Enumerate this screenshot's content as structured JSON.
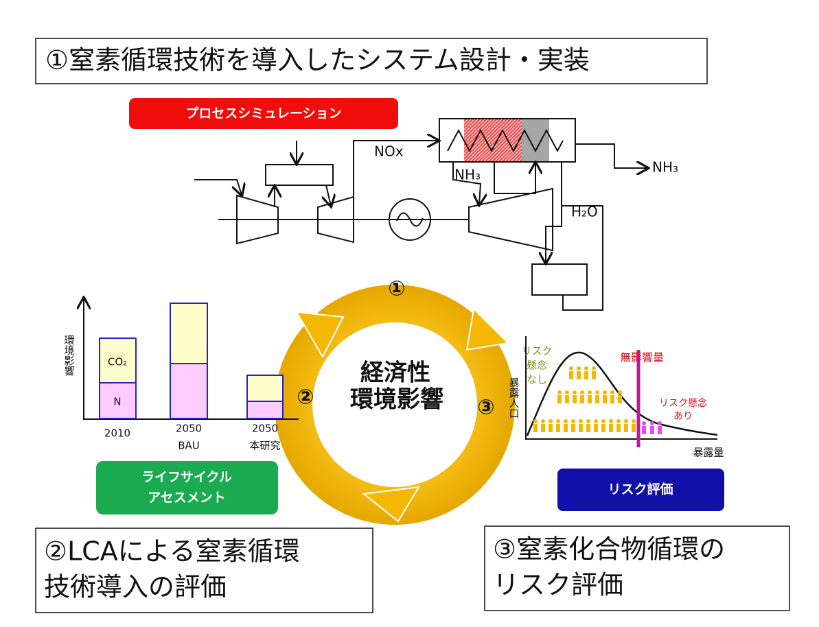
{
  "header": {
    "title": "①窒素循環技術を導入したシステム設計・実装"
  },
  "process": {
    "label": "プロセスシミュレーション",
    "nox": "NOx",
    "nh3_in": "NH₃",
    "nh3_out": "NH₃",
    "h2o": "H₂O"
  },
  "cycle": {
    "step1": "①",
    "step2": "②",
    "step3": "③",
    "center": [
      "経済性",
      "環境影響"
    ]
  },
  "lca": {
    "y_label": "環境影響",
    "segments": [
      "CO₂",
      "N"
    ],
    "categories": [
      [
        "2010"
      ],
      [
        "2050",
        "BAU"
      ],
      [
        "2050",
        "本研究"
      ]
    ],
    "label": [
      "ライフサイクル",
      "アセスメント"
    ]
  },
  "risk": {
    "y_label": "暴露人口",
    "x_label": "暴露量",
    "no_concern": [
      "リスク",
      "懸念",
      "なし"
    ],
    "noel": "無影響量",
    "concern": [
      "リスク懸念",
      "あり"
    ],
    "label": "リスク評価"
  },
  "boxes": {
    "lca": [
      "②LCAによる窒素循環",
      "技術導入の評価"
    ],
    "risk": [
      "③窒素化合物循環の",
      "リスク評価"
    ]
  }
}
